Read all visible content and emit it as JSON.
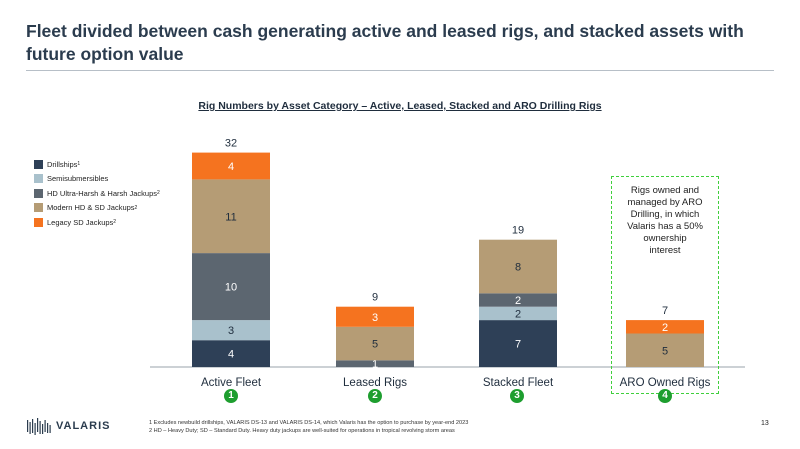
{
  "page": {
    "title": "Fleet divided between cash generating active and leased rigs, and stacked assets with future option value",
    "page_number": "13"
  },
  "legend": {
    "items": [
      {
        "label": "Drillships",
        "sup": "1",
        "color": "#2e4057"
      },
      {
        "label": "Semisubmersibles",
        "sup": "",
        "color": "#a9c1cc"
      },
      {
        "label": "HD Ultra-Harsh & Harsh Jackups",
        "sup": "2",
        "color": "#5c6670"
      },
      {
        "label": "Modern HD & SD Jackups",
        "sup": "2",
        "color": "#b59c75"
      },
      {
        "label": "Legacy SD Jackups",
        "sup": "2",
        "color": "#f5731f"
      }
    ]
  },
  "badges": [
    "1",
    "2",
    "3",
    "4"
  ],
  "aro_note": {
    "lines": [
      "Rigs owned and",
      "managed by ARO",
      "Drilling, in which",
      "Valaris has a 50%",
      "ownership",
      "interest"
    ]
  },
  "logo": {
    "text": "VALARIS"
  },
  "footnotes": [
    "1 Excludes newbuild drillships, VALARIS DS-13 and VALARIS DS-14, which Valaris has the option to purchase by year-end 2023",
    "2 HD – Heavy Duty; SD – Standard Duty. Heavy duty jackups are well-suited for operations in tropical revolving storm areas"
  ],
  "chart_data": {
    "type": "bar",
    "stacked": true,
    "title": "Rig Numbers by Asset Category – Active, Leased, Stacked and ARO Drilling Rigs",
    "categories": [
      "Active Fleet",
      "Leased Rigs",
      "Stacked Fleet",
      "ARO Owned Rigs"
    ],
    "totals": [
      32,
      9,
      19,
      7
    ],
    "series": [
      {
        "name": "Drillships",
        "color": "#2e4057",
        "values": [
          4,
          0,
          7,
          0
        ]
      },
      {
        "name": "Semisubmersibles",
        "color": "#a9c1cc",
        "values": [
          3,
          0,
          2,
          0
        ]
      },
      {
        "name": "HD Ultra-Harsh & Harsh Jackups",
        "color": "#5c6670",
        "values": [
          10,
          1,
          2,
          0
        ]
      },
      {
        "name": "Modern HD & SD Jackups",
        "color": "#b59c75",
        "values": [
          11,
          5,
          8,
          5
        ]
      },
      {
        "name": "Legacy SD Jackups",
        "color": "#f5731f",
        "values": [
          4,
          3,
          0,
          2
        ]
      }
    ],
    "legend_position": "top-left",
    "grid": false
  }
}
